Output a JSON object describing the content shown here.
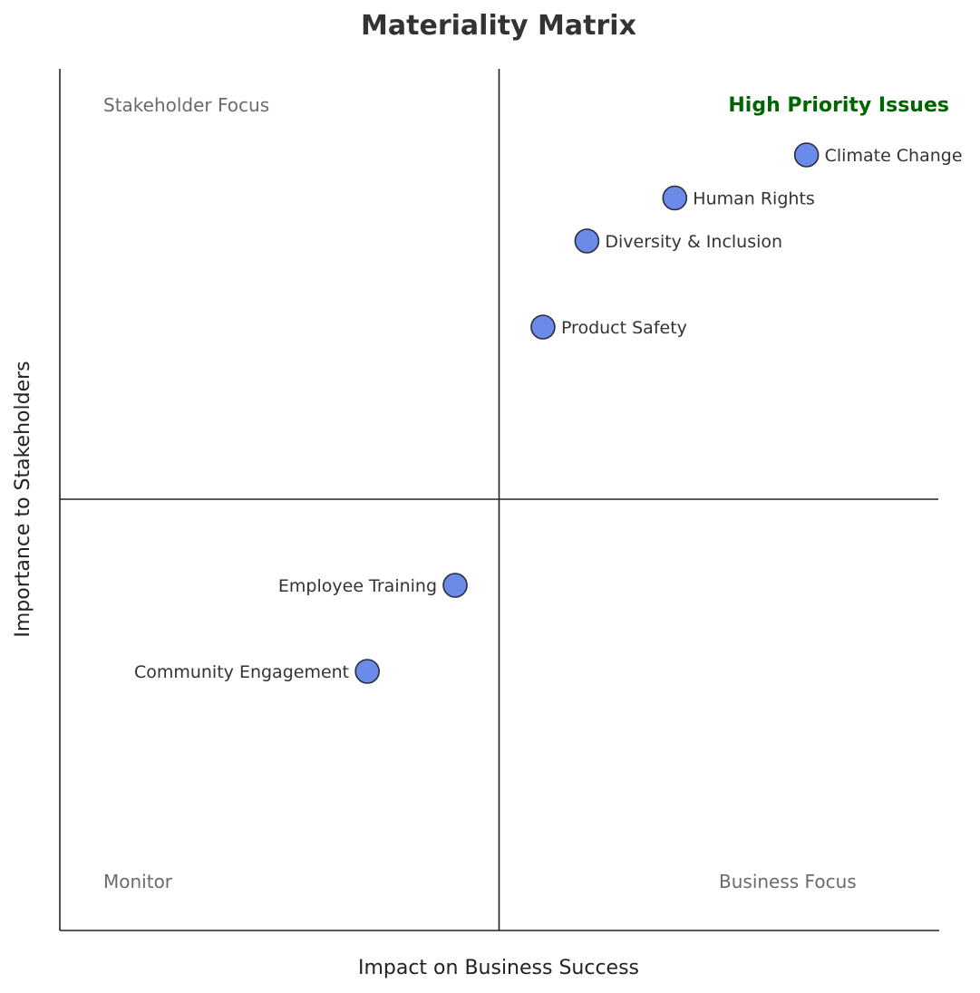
{
  "chart_data": {
    "type": "scatter",
    "title": "Materiality Matrix",
    "xlabel": "Impact on Business Success",
    "ylabel": "Importance to Stakeholders",
    "xlim": [
      0,
      10
    ],
    "ylim": [
      0,
      10
    ],
    "grid": false,
    "quadrant_dividers": {
      "x": 5,
      "y": 5
    },
    "quadrant_labels": {
      "top_left": "Stakeholder Focus",
      "top_right": "High Priority Issues",
      "bottom_left": "Monitor",
      "bottom_right": "Business Focus"
    },
    "colors": {
      "marker": "#6a8be8",
      "marker_edge": "#2b2b3b",
      "high_priority": "#006400",
      "quadrant_label": "#6b6b6b"
    },
    "points": [
      {
        "label": "Climate Change",
        "x": 8.5,
        "y": 9.0
      },
      {
        "label": "Human Rights",
        "x": 7.0,
        "y": 8.5
      },
      {
        "label": "Diversity & Inclusion",
        "x": 6.0,
        "y": 8.0
      },
      {
        "label": "Product Safety",
        "x": 5.5,
        "y": 7.0
      },
      {
        "label": "Employee Training",
        "x": 4.5,
        "y": 4.0
      },
      {
        "label": "Community Engagement",
        "x": 3.5,
        "y": 3.0
      }
    ]
  }
}
